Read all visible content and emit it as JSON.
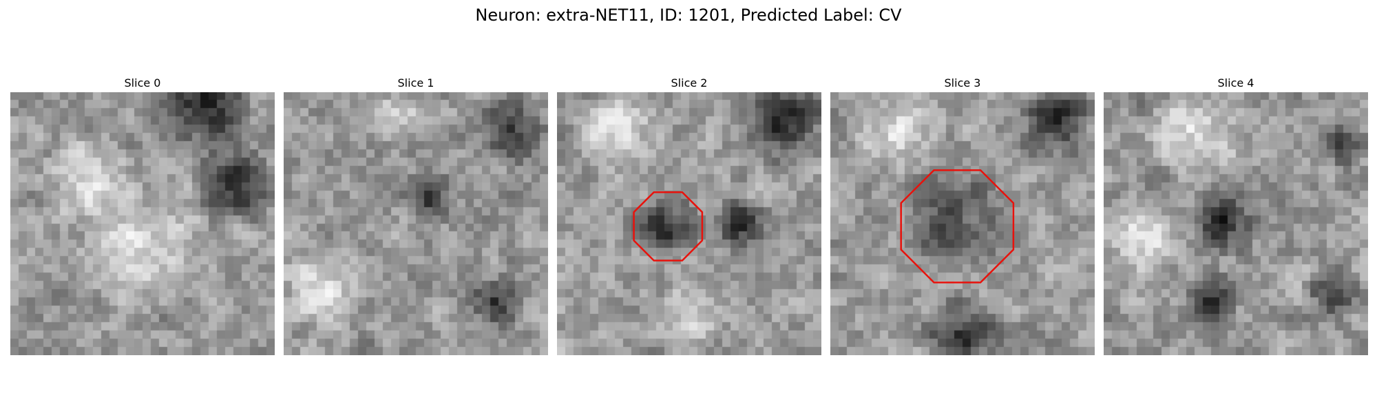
{
  "figure": {
    "title": "Neuron: extra-NET11, ID: 1201, Predicted Label: CV"
  },
  "panels": [
    {
      "title": "Slice 0",
      "seed": 11,
      "dark_zones": [
        [
          0.72,
          0.05,
          0.22
        ],
        [
          0.85,
          0.35,
          0.18
        ]
      ],
      "bright_zones": [
        [
          0.5,
          0.6,
          0.25
        ],
        [
          0.3,
          0.35,
          0.2
        ]
      ],
      "marker": null
    },
    {
      "title": "Slice 1",
      "seed": 23,
      "dark_zones": [
        [
          0.85,
          0.15,
          0.15
        ],
        [
          0.55,
          0.4,
          0.12
        ],
        [
          0.8,
          0.8,
          0.12
        ]
      ],
      "bright_zones": [
        [
          0.15,
          0.75,
          0.18
        ],
        [
          0.45,
          0.1,
          0.12
        ]
      ],
      "marker": null
    },
    {
      "title": "Slice 2",
      "seed": 37,
      "dark_zones": [
        [
          0.85,
          0.1,
          0.2
        ],
        [
          0.42,
          0.52,
          0.14
        ],
        [
          0.7,
          0.5,
          0.12
        ]
      ],
      "bright_zones": [
        [
          0.25,
          0.15,
          0.2
        ],
        [
          0.5,
          0.85,
          0.15
        ]
      ],
      "marker": {
        "cx": 0.42,
        "cy": 0.51,
        "r": 0.14
      }
    },
    {
      "title": "Slice 3",
      "seed": 51,
      "dark_zones": [
        [
          0.5,
          0.93,
          0.18
        ],
        [
          0.85,
          0.1,
          0.18
        ],
        [
          0.48,
          0.5,
          0.22
        ]
      ],
      "bright_zones": [
        [
          0.5,
          0.5,
          0.1
        ],
        [
          0.25,
          0.15,
          0.2
        ]
      ],
      "marker": {
        "cx": 0.48,
        "cy": 0.51,
        "r": 0.23
      }
    },
    {
      "title": "Slice 4",
      "seed": 67,
      "dark_zones": [
        [
          0.45,
          0.5,
          0.15
        ],
        [
          0.4,
          0.78,
          0.12
        ],
        [
          0.87,
          0.75,
          0.12
        ],
        [
          0.9,
          0.2,
          0.1
        ]
      ],
      "bright_zones": [
        [
          0.35,
          0.15,
          0.22
        ],
        [
          0.15,
          0.55,
          0.18
        ]
      ],
      "marker": null
    }
  ],
  "colors": {
    "marker": "#e8120c"
  }
}
